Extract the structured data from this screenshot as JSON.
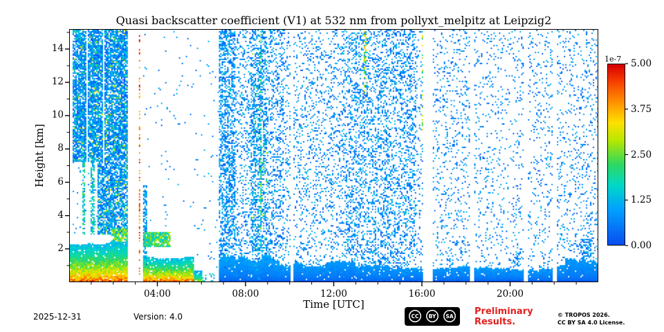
{
  "chart_data": {
    "type": "heatmap",
    "title": "Quasi backscatter coefficient (V1) at 532 nm from pollyxt_melpitz at Leipzig2",
    "xlabel": "Time [UTC]",
    "ylabel": "Height [km]",
    "x_range_hours": [
      0,
      24
    ],
    "x_tick_hours": [
      4,
      8,
      12,
      16,
      20
    ],
    "x_tick_labels": [
      "04:00",
      "08:00",
      "12:00",
      "16:00",
      "20:00"
    ],
    "y_range_km": [
      0,
      15.2
    ],
    "y_tick_values": [
      2,
      4,
      6,
      8,
      10,
      12,
      14
    ],
    "y_tick_labels": [
      "2",
      "4",
      "6",
      "8",
      "10",
      "12",
      "14"
    ],
    "colorbar": {
      "exponent_label": "1e-7",
      "vmin": 0,
      "vmax": 5,
      "tick_values": [
        5.0,
        3.75,
        2.5,
        1.25,
        0.0
      ],
      "tick_labels": [
        "5.00",
        "3.75",
        "2.50",
        "1.25",
        "0.00"
      ],
      "colormap_stops": [
        [
          0.0,
          "#0a4cf0"
        ],
        [
          0.2,
          "#00a2ff"
        ],
        [
          0.33,
          "#00d8c8"
        ],
        [
          0.45,
          "#30d860"
        ],
        [
          0.58,
          "#b8e800"
        ],
        [
          0.68,
          "#ffe000"
        ],
        [
          0.8,
          "#ff8c00"
        ],
        [
          0.92,
          "#f43500"
        ],
        [
          1.0,
          "#d60000"
        ]
      ]
    },
    "legend": "values are quasi backscatter coefficient in units of 1e-7 m-1 sr-1, jet-style colormap, white = no data",
    "regions": [
      {
        "kind": "speckle",
        "t": [
          0.12,
          2.62
        ],
        "z": [
          7.2,
          15.2
        ],
        "d": 0.8,
        "v": [
          0.02,
          0.3
        ],
        "p2": 0.1,
        "v2": [
          0.3,
          0.65
        ]
      },
      {
        "kind": "speckle",
        "t": [
          1.25,
          2.62
        ],
        "z": [
          2.8,
          7.2
        ],
        "d": 0.75,
        "v": [
          0.02,
          0.3
        ],
        "p2": 0.12,
        "v2": [
          0.3,
          0.7
        ]
      },
      {
        "kind": "speckle",
        "t": [
          0.55,
          0.68
        ],
        "z": [
          2.8,
          7.2
        ],
        "d": 0.6,
        "v": [
          0.2,
          0.5
        ]
      },
      {
        "kind": "speckle",
        "t": [
          0.95,
          1.1
        ],
        "z": [
          2.8,
          7.2
        ],
        "d": 0.6,
        "v": [
          0.15,
          0.45
        ]
      },
      {
        "kind": "speckle",
        "t": [
          0.12,
          1.25
        ],
        "z": [
          2.8,
          7.2
        ],
        "d": 0.04,
        "v": [
          0.05,
          0.3
        ]
      },
      {
        "kind": "speckle",
        "t": [
          1.85,
          2.62
        ],
        "z": [
          1.8,
          3.2
        ],
        "d": 0.8,
        "v": [
          0.3,
          0.65
        ]
      },
      {
        "kind": "gradient",
        "t": [
          0,
          2.62
        ],
        "z": [
          0,
          2.55
        ],
        "d": 0.95,
        "v": [
          0.25,
          0.95
        ],
        "jit": 0.12
      },
      {
        "kind": "gap",
        "t": [
          0.78,
          0.84
        ],
        "z": [
          2.6,
          15.2
        ]
      },
      {
        "kind": "gap",
        "t": [
          1.52,
          1.58
        ],
        "z": [
          7,
          15.2
        ]
      },
      {
        "kind": "gap",
        "t": [
          2.62,
          3.3
        ],
        "z": [
          0,
          15.2
        ]
      },
      {
        "kind": "speckle",
        "t": [
          3.12,
          3.18
        ],
        "z": [
          0.3,
          15.2
        ],
        "d": 0.35,
        "v": [
          0.7,
          1
        ]
      },
      {
        "kind": "speckle",
        "t": [
          3.3,
          3.52
        ],
        "z": [
          0,
          5.8
        ],
        "d": 0.65,
        "v": [
          0.05,
          0.3
        ]
      },
      {
        "kind": "gradient",
        "t": [
          3.3,
          5.62
        ],
        "z": [
          0,
          1.6
        ],
        "d": 0.95,
        "v": [
          0.25,
          0.95
        ],
        "jit": 0.15
      },
      {
        "kind": "speckle",
        "t": [
          3.35,
          4.6
        ],
        "z": [
          2.1,
          3
        ],
        "d": 0.85,
        "v": [
          0.25,
          0.6
        ]
      },
      {
        "kind": "speckle",
        "t": [
          3.3,
          5.62
        ],
        "z": [
          3,
          15.2
        ],
        "d": 0.012,
        "v": [
          0.05,
          0.25
        ]
      },
      {
        "kind": "gradient",
        "t": [
          5.62,
          6
        ],
        "z": [
          0,
          0.7
        ],
        "d": 0.85,
        "v": [
          0.2,
          0.6
        ],
        "jit": 0.2
      },
      {
        "kind": "speckle",
        "t": [
          5.62,
          6.78
        ],
        "z": [
          0.7,
          15.2
        ],
        "d": 0.015,
        "v": [
          0.05,
          0.25
        ]
      },
      {
        "kind": "speckle",
        "t": [
          6,
          6.6
        ],
        "z": [
          0,
          0.5
        ],
        "d": 0.3,
        "v": [
          0.1,
          0.4
        ]
      },
      {
        "kind": "speckle",
        "t": [
          6.78,
          7.55
        ],
        "z": [
          0,
          15.2
        ],
        "d": 0.5,
        "v": [
          0.02,
          0.3
        ]
      },
      {
        "kind": "speckle",
        "t": [
          7.55,
          8.2
        ],
        "z": [
          0,
          15.2
        ],
        "d": 0.22,
        "v": [
          0.02,
          0.28
        ]
      },
      {
        "kind": "speckle",
        "t": [
          8.2,
          8.95
        ],
        "z": [
          0,
          15.2
        ],
        "d": 0.45,
        "v": [
          0.02,
          0.3
        ],
        "p2": 0.06,
        "v2": [
          0.3,
          0.6
        ]
      },
      {
        "kind": "speckle",
        "t": [
          8.95,
          9.7
        ],
        "z": [
          0,
          15.2
        ],
        "d": 0.28,
        "v": [
          0.02,
          0.28
        ]
      },
      {
        "kind": "speckle",
        "t": [
          9.7,
          12.4
        ],
        "z": [
          0,
          15.2
        ],
        "d": 0.17,
        "v": [
          0.02,
          0.28
        ]
      },
      {
        "kind": "speckle",
        "t": [
          12.4,
          15.75
        ],
        "z": [
          0,
          15.2
        ],
        "d": 0.3,
        "v": [
          0.02,
          0.28
        ]
      },
      {
        "kind": "speckle",
        "t": [
          15.75,
          18.15
        ],
        "z": [
          0,
          15.2
        ],
        "d": 0.12,
        "v": [
          0.02,
          0.26
        ]
      },
      {
        "kind": "speckle",
        "t": [
          18.15,
          21.5
        ],
        "z": [
          0,
          15.2
        ],
        "d": 0.09,
        "v": [
          0.02,
          0.26
        ]
      },
      {
        "kind": "speckle",
        "t": [
          21.5,
          24
        ],
        "z": [
          0,
          15.2
        ],
        "d": 0.12,
        "v": [
          0.02,
          0.26
        ]
      },
      {
        "kind": "speckle",
        "t": [
          8.62,
          8.74
        ],
        "z": [
          0,
          15.2
        ],
        "d": 0.45,
        "v": [
          0.25,
          0.55
        ]
      },
      {
        "kind": "speckle",
        "t": [
          13.35,
          13.46
        ],
        "z": [
          11,
          15.2
        ],
        "d": 0.35,
        "v": [
          0.4,
          0.75
        ]
      },
      {
        "kind": "speckle",
        "t": [
          15.95,
          16.03
        ],
        "z": [
          9,
          15.2
        ],
        "d": 0.35,
        "v": [
          0.35,
          0.7
        ]
      },
      {
        "kind": "gradient",
        "t": [
          6.78,
          9.5
        ],
        "z": [
          0,
          1.8
        ],
        "d": 0.95,
        "v": [
          0.2,
          0.04
        ],
        "jit": 0.35
      },
      {
        "kind": "gradient",
        "t": [
          9.5,
          13
        ],
        "z": [
          0,
          1.3
        ],
        "d": 0.95,
        "v": [
          0.18,
          0.04
        ],
        "jit": 0.3
      },
      {
        "kind": "gradient",
        "t": [
          13,
          16
        ],
        "z": [
          0,
          1.1
        ],
        "d": 0.95,
        "v": [
          0.18,
          0.04
        ],
        "jit": 0.3
      },
      {
        "kind": "gradient",
        "t": [
          16,
          20
        ],
        "z": [
          0,
          0.95
        ],
        "d": 0.95,
        "v": [
          0.18,
          0.04
        ],
        "jit": 0.3
      },
      {
        "kind": "gradient",
        "t": [
          20,
          22.5
        ],
        "z": [
          0,
          1
        ],
        "d": 0.95,
        "v": [
          0.18,
          0.04
        ],
        "jit": 0.3
      },
      {
        "kind": "gradient",
        "t": [
          22.5,
          24
        ],
        "z": [
          0,
          1.4
        ],
        "d": 0.95,
        "v": [
          0.18,
          0.04
        ],
        "jit": 0.3
      },
      {
        "kind": "solid",
        "t": [
          6.78,
          24
        ],
        "z": [
          0,
          0.12
        ],
        "d": 1,
        "v": [
          0,
          0.06
        ]
      },
      {
        "kind": "speckle",
        "t": [
          8.3,
          8.55
        ],
        "z": [
          1.8,
          2.7
        ],
        "d": 0.5,
        "v": [
          0.05,
          0.3
        ]
      },
      {
        "kind": "speckle",
        "t": [
          20.1,
          20.5
        ],
        "z": [
          0.95,
          1.9
        ],
        "d": 0.4,
        "v": [
          0.05,
          0.3
        ]
      },
      {
        "kind": "speckle",
        "t": [
          23.2,
          23.7
        ],
        "z": [
          1.4,
          2.6
        ],
        "d": 0.5,
        "v": [
          0.05,
          0.3
        ]
      },
      {
        "kind": "gap",
        "t": [
          10.05,
          10.18
        ],
        "z": [
          0,
          15.2
        ]
      },
      {
        "kind": "gap",
        "t": [
          16.05,
          16.45
        ],
        "z": [
          0,
          15.2
        ]
      },
      {
        "kind": "gap",
        "t": [
          18.15,
          18.38
        ],
        "z": [
          0,
          15.2
        ]
      },
      {
        "kind": "gap",
        "t": [
          20.6,
          20.82
        ],
        "z": [
          0,
          15.2
        ]
      },
      {
        "kind": "gap",
        "t": [
          21.95,
          22.15
        ],
        "z": [
          0,
          15.2
        ]
      }
    ]
  },
  "footer": {
    "date": "2025-12-31",
    "version": "Version: 4.0",
    "preliminary": [
      "Preliminary",
      "Results."
    ],
    "preliminary_color": "#e02020",
    "copyright": [
      "© TROPOS 2026.",
      "CC BY SA 4.0 License."
    ],
    "badge": {
      "labels": [
        "CC",
        "BY",
        "SA"
      ]
    }
  }
}
